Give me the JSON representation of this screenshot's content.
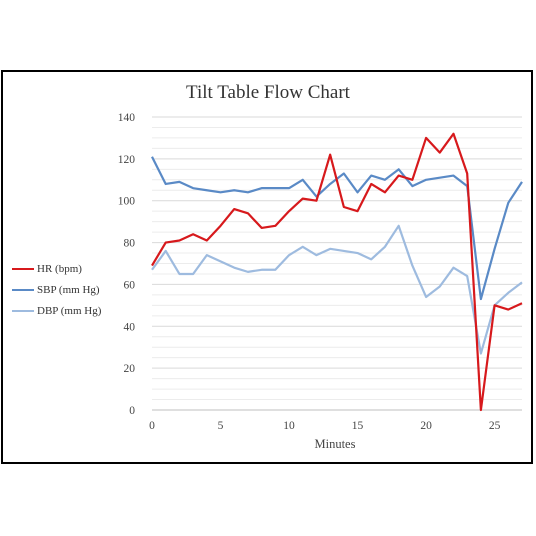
{
  "chart_data": {
    "type": "line",
    "title": "Tilt Table Flow Chart",
    "xlabel": "Minutes",
    "ylabel": "",
    "xlim": [
      0,
      27
    ],
    "ylim": [
      0,
      140
    ],
    "xticks": [
      "0",
      "5",
      "10",
      "15",
      "20",
      "25"
    ],
    "yticks": [
      "0",
      "20",
      "40",
      "60",
      "80",
      "100",
      "120",
      "140"
    ],
    "legend_position": "left",
    "grid": true,
    "x": [
      0,
      1,
      2,
      3,
      4,
      5,
      6,
      7,
      8,
      9,
      10,
      11,
      12,
      13,
      14,
      15,
      16,
      17,
      18,
      19,
      20,
      21,
      22,
      23,
      24,
      25,
      26,
      27
    ],
    "series": [
      {
        "name": "HR (bpm)",
        "color": "#d7191c",
        "values": [
          69,
          80,
          81,
          84,
          81,
          88,
          96,
          94,
          87,
          88,
          95,
          101,
          100,
          122,
          97,
          95,
          108,
          104,
          112,
          110,
          130,
          123,
          132,
          113,
          0,
          50,
          48,
          51
        ]
      },
      {
        "name": "SBP (mm Hg)",
        "color": "#5a8ac6",
        "values": [
          121,
          108,
          109,
          106,
          105,
          104,
          105,
          104,
          106,
          106,
          106,
          110,
          102,
          108,
          113,
          104,
          112,
          110,
          115,
          107,
          110,
          111,
          112,
          107,
          53,
          77,
          99,
          109
        ]
      },
      {
        "name": "DBP (mm Hg)",
        "color": "#9ebbdf",
        "values": [
          67,
          76,
          65,
          65,
          74,
          71,
          68,
          66,
          67,
          67,
          74,
          78,
          74,
          77,
          76,
          75,
          72,
          78,
          88,
          69,
          54,
          59,
          68,
          64,
          27,
          50,
          56,
          61
        ]
      }
    ]
  }
}
